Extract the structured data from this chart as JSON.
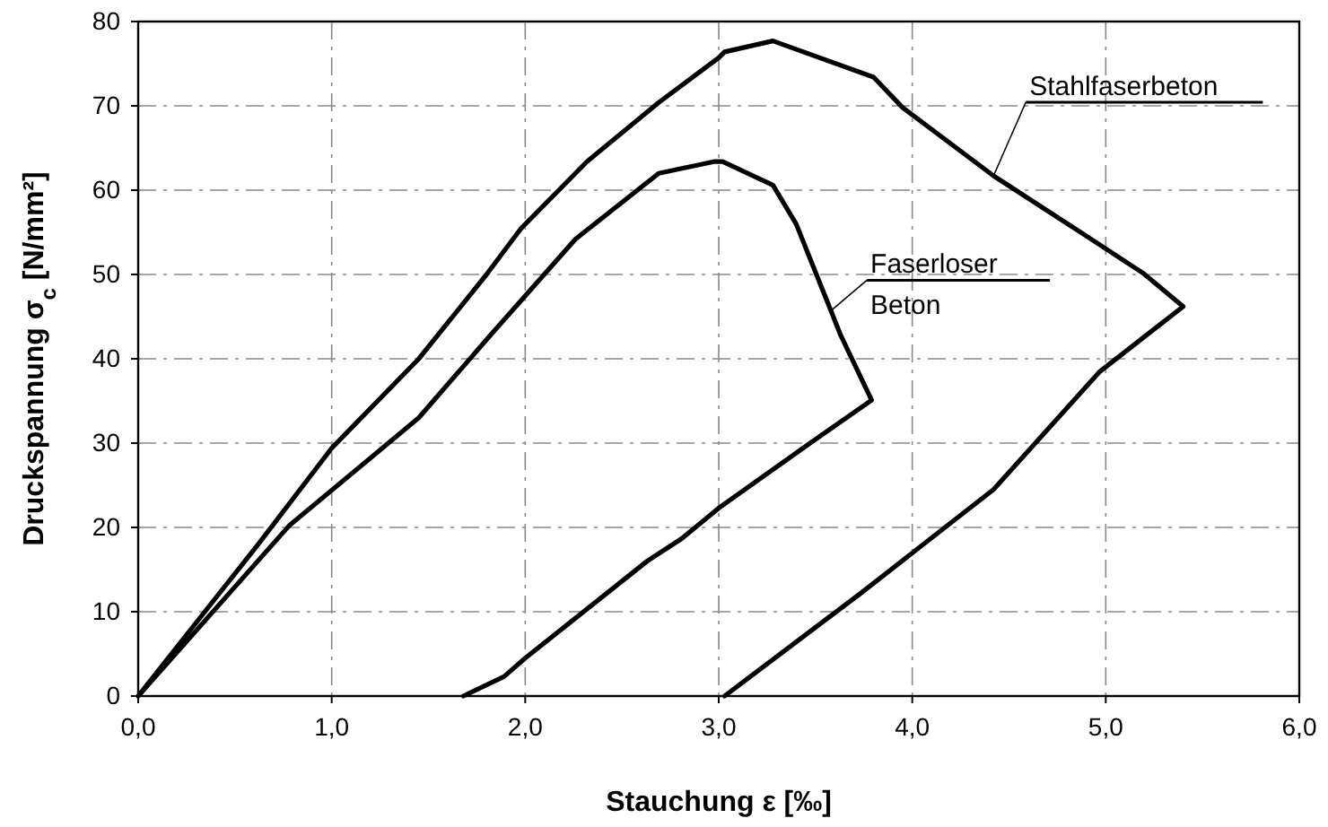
{
  "chart_data": {
    "type": "line",
    "xlabel": "Stauchung ε [‰]",
    "ylabel": "Druckspannung σ$_{c}$ [N/mm²]",
    "xlim": [
      0,
      6
    ],
    "ylim": [
      0,
      80
    ],
    "xticks": [
      {
        "value": 0,
        "label": "0,0"
      },
      {
        "value": 1,
        "label": "1,0"
      },
      {
        "value": 2,
        "label": "2,0"
      },
      {
        "value": 3,
        "label": "3,0"
      },
      {
        "value": 4,
        "label": "4,0"
      },
      {
        "value": 5,
        "label": "5,0"
      },
      {
        "value": 6,
        "label": "6,0"
      }
    ],
    "yticks": [
      0,
      10,
      20,
      30,
      40,
      50,
      60,
      70,
      80
    ],
    "grid": true,
    "marker": "none",
    "line_style": "solid",
    "series": [
      {
        "name": "Stahlfaserbeton",
        "color": "#000000",
        "x": [
          0,
          0.62,
          1.0,
          1.45,
          1.8,
          1.98,
          2.32,
          2.69,
          3.0,
          3.03,
          3.28,
          3.8,
          3.95,
          4.42,
          4.85,
          5.19,
          5.4,
          4.97,
          4.42,
          3.74,
          3.03
        ],
        "values": [
          0,
          18,
          29.4,
          40,
          50,
          55.5,
          63.4,
          70.4,
          75.7,
          76.4,
          77.7,
          73.4,
          69.8,
          61.7,
          55.3,
          50.2,
          46.2,
          38.5,
          24.5,
          12.3,
          0
        ]
      },
      {
        "name": "Faserloser Beton",
        "color": "#000000",
        "x": [
          0,
          0.78,
          1.45,
          1.82,
          2.26,
          2.69,
          2.98,
          3.02,
          3.28,
          3.4,
          3.58,
          3.63,
          3.79,
          3.46,
          3.0,
          2.81,
          2.63,
          2.0,
          1.89,
          1.68
        ],
        "values": [
          0,
          20.2,
          33,
          42.8,
          54.2,
          62,
          63.4,
          63.4,
          60.6,
          56,
          45.7,
          42.8,
          35.1,
          29.8,
          22.3,
          18.7,
          16,
          4.5,
          2.3,
          0
        ]
      }
    ]
  }
}
